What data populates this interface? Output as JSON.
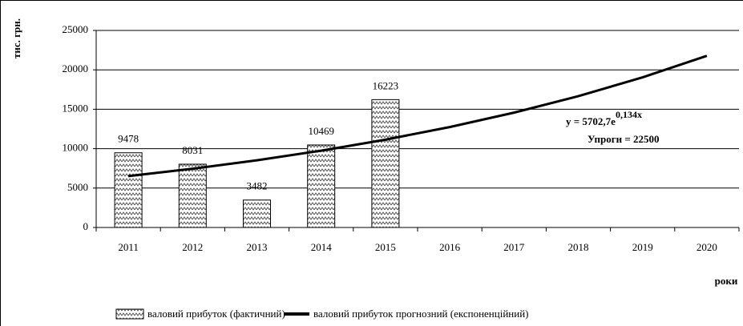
{
  "chart_data": {
    "type": "bar",
    "y_label": "тис. грн.",
    "x_label": "роки",
    "categories": [
      "2011",
      "2012",
      "2013",
      "2014",
      "2015",
      "2016",
      "2017",
      "2018",
      "2019",
      "2020"
    ],
    "series": [
      {
        "name": "валовий прибуток (фактичний)",
        "type": "bar",
        "color": "#555555",
        "values": [
          9478,
          8031,
          3482,
          10469,
          16223,
          null,
          null,
          null,
          null,
          null
        ]
      },
      {
        "name": "валовий прибуток прогнозний (експоненційний)",
        "type": "line",
        "color": "#000000",
        "values": [
          6520,
          7455,
          8524,
          9747,
          11144,
          12743,
          14570,
          16659,
          19048,
          21779
        ]
      }
    ],
    "equation": {
      "base": "y = 5702,7e",
      "exponent": "0,134x"
    },
    "annotations": [
      "Упрогн = 22500"
    ],
    "ylim": [
      0,
      25000
    ],
    "yticks": [
      0,
      5000,
      10000,
      15000,
      20000,
      25000
    ],
    "grid": true
  }
}
